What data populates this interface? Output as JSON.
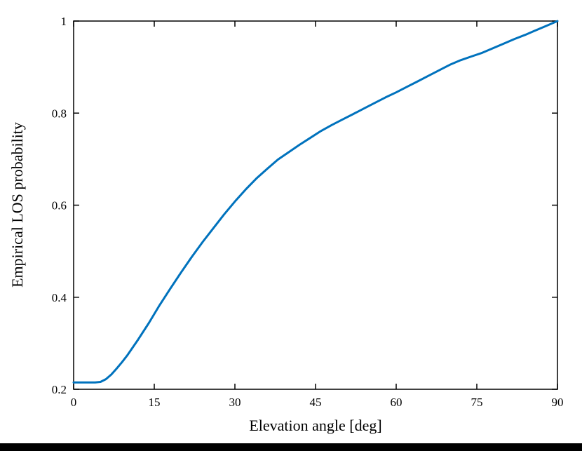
{
  "figure": {
    "background": "#ffffff",
    "axis_color": "#000000",
    "line_color": "#0072BD"
  },
  "chart_data": {
    "type": "line",
    "title": "",
    "xlabel": "Elevation angle [deg]",
    "ylabel": "Empirical LOS probability",
    "xlim": [
      0,
      90
    ],
    "ylim": [
      0.2,
      1
    ],
    "xticks": [
      0,
      15,
      30,
      45,
      60,
      75,
      90
    ],
    "yticks": [
      0.2,
      0.4,
      0.6,
      0.8,
      1
    ],
    "xtick_labels": [
      "0",
      "15",
      "30",
      "45",
      "60",
      "75",
      "90"
    ],
    "ytick_labels": [
      "0.2",
      "0.4",
      "0.6",
      "0.8",
      "1"
    ],
    "grid": false,
    "legend_position": "none",
    "series": [
      {
        "name": "Empirical LOS probability",
        "x": [
          0,
          2,
          4,
          5,
          6,
          7,
          8,
          9,
          10,
          12,
          14,
          16,
          18,
          20,
          22,
          24,
          26,
          28,
          30,
          32,
          34,
          36,
          38,
          40,
          42,
          44,
          46,
          48,
          50,
          52,
          54,
          56,
          58,
          60,
          62,
          64,
          66,
          68,
          70,
          72,
          74,
          76,
          78,
          80,
          82,
          84,
          86,
          88,
          90
        ],
        "y": [
          0.215,
          0.215,
          0.215,
          0.216,
          0.222,
          0.232,
          0.245,
          0.259,
          0.274,
          0.308,
          0.344,
          0.383,
          0.419,
          0.454,
          0.488,
          0.52,
          0.55,
          0.58,
          0.608,
          0.634,
          0.658,
          0.679,
          0.699,
          0.715,
          0.731,
          0.746,
          0.761,
          0.774,
          0.786,
          0.798,
          0.81,
          0.822,
          0.834,
          0.845,
          0.857,
          0.869,
          0.881,
          0.893,
          0.905,
          0.915,
          0.923,
          0.931,
          0.941,
          0.951,
          0.961,
          0.97,
          0.98,
          0.99,
          1.0
        ]
      }
    ]
  }
}
